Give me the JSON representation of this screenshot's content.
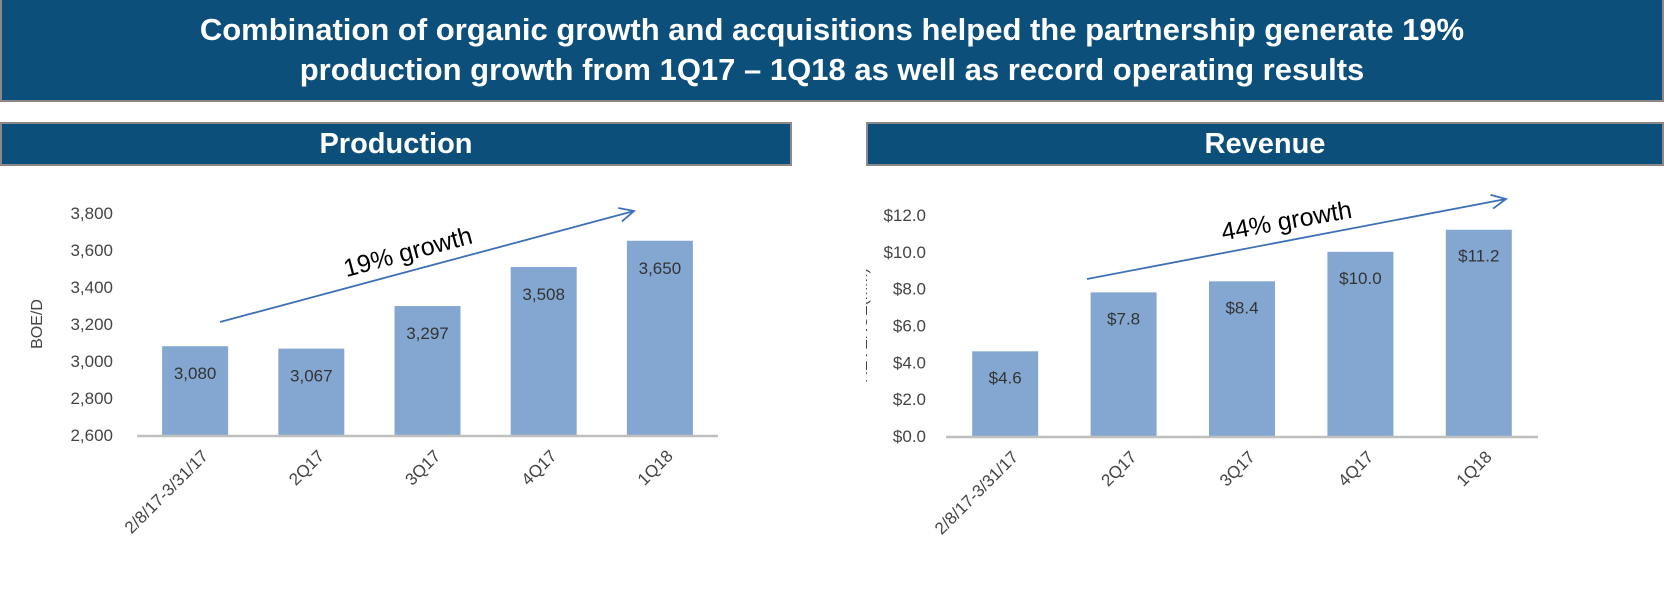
{
  "banner": {
    "line1": "Combination of organic growth and acquisitions helped the partnership generate 19%",
    "line2": "production growth from 1Q17 – 1Q18 as well as record operating results"
  },
  "colors": {
    "header_bg": "#0b4f7a",
    "bar": "#84a7d1",
    "arrow": "#3d70b5",
    "axis": "#bfbfbf"
  },
  "chart_data": [
    {
      "type": "bar",
      "title": "Production",
      "ylabel": "BOE/D",
      "xlabel": "",
      "categories": [
        "2/8/17-3/31/17",
        "2Q17",
        "3Q17",
        "4Q17",
        "1Q18"
      ],
      "values": [
        3080,
        3067,
        3297,
        3508,
        3650
      ],
      "data_labels": [
        "3,080",
        "3,067",
        "3,297",
        "3,508",
        "3,650"
      ],
      "ylim": [
        2600,
        3800
      ],
      "yticks": [
        2600,
        2800,
        3000,
        3200,
        3400,
        3600,
        3800
      ],
      "ytick_labels": [
        "2,600",
        "2,800",
        "3,000",
        "3,200",
        "3,400",
        "3,600",
        "3,800"
      ],
      "annotation": "19% growth",
      "grid": false
    },
    {
      "type": "bar",
      "title": "Revenue",
      "ylabel": "REVENUE(MM)",
      "xlabel": "",
      "categories": [
        "2/8/17-3/31/17",
        "2Q17",
        "3Q17",
        "4Q17",
        "1Q18"
      ],
      "values": [
        4.6,
        7.8,
        8.4,
        10.0,
        11.2
      ],
      "data_labels": [
        "$4.6",
        "$7.8",
        "$8.4",
        "$10.0",
        "$11.2"
      ],
      "ylim": [
        0,
        12
      ],
      "yticks": [
        0,
        2,
        4,
        6,
        8,
        10,
        12
      ],
      "ytick_labels": [
        "$0.0",
        "$2.0",
        "$4.0",
        "$6.0",
        "$8.0",
        "$10.0",
        "$12.0"
      ],
      "annotation": "44% growth",
      "grid": false
    }
  ]
}
